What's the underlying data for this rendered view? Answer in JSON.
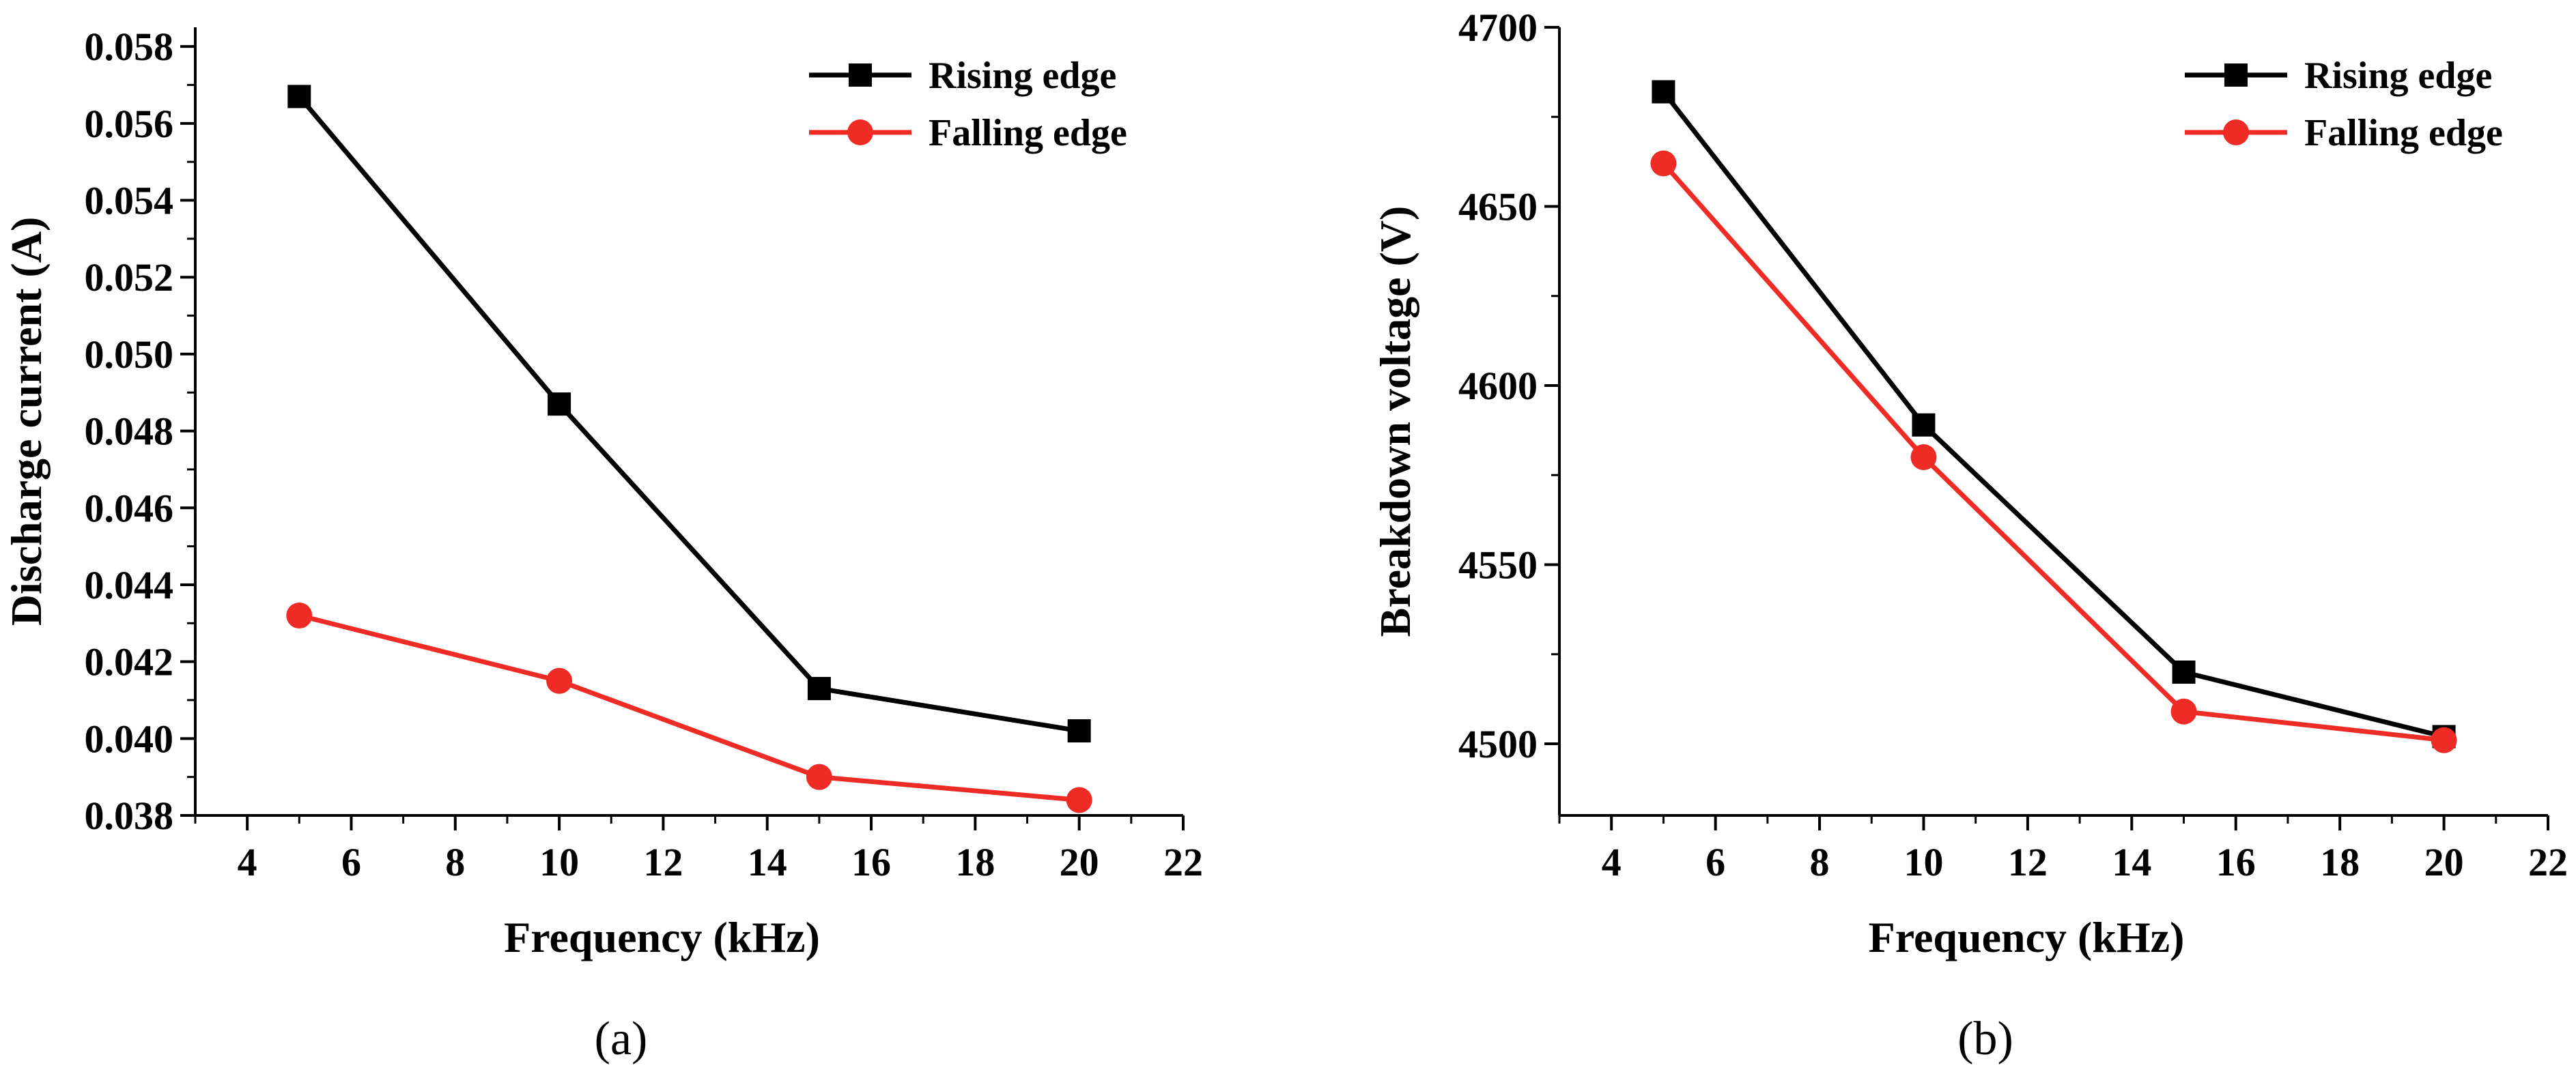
{
  "chart_data": [
    {
      "type": "line",
      "panel_label": "(a)",
      "xlabel": "Frequency (kHz)",
      "ylabel": "Discharge current (A)",
      "xlim": [
        3,
        22
      ],
      "ylim": [
        0.038,
        0.0585
      ],
      "xticks": [
        4,
        6,
        8,
        10,
        12,
        14,
        16,
        18,
        20,
        22
      ],
      "xtick_labels": [
        "4",
        "6",
        "8",
        "10",
        "12",
        "14",
        "16",
        "18",
        "20",
        "22"
      ],
      "yticks": [
        0.038,
        0.04,
        0.042,
        0.044,
        0.046,
        0.048,
        0.05,
        0.052,
        0.054,
        0.056,
        0.058
      ],
      "ytick_labels": [
        "0.038",
        "0.040",
        "0.042",
        "0.044",
        "0.046",
        "0.048",
        "0.050",
        "0.052",
        "0.054",
        "0.056",
        "0.058"
      ],
      "legend_position": "top-right",
      "x": [
        5,
        10,
        15,
        20
      ],
      "series": [
        {
          "name": "Rising edge",
          "color": "#000000",
          "marker": "square",
          "values": [
            0.0567,
            0.0487,
            0.0413,
            0.0402
          ]
        },
        {
          "name": "Falling edge",
          "color": "#ee2b24",
          "marker": "circle",
          "values": [
            0.0432,
            0.0415,
            0.039,
            0.0384
          ]
        }
      ]
    },
    {
      "type": "line",
      "panel_label": "(b)",
      "xlabel": "Frequency (kHz)",
      "ylabel": "Breakdown voltage (V)",
      "xlim": [
        3,
        22
      ],
      "ylim": [
        4480,
        4700
      ],
      "xticks": [
        4,
        6,
        8,
        10,
        12,
        14,
        16,
        18,
        20,
        22
      ],
      "xtick_labels": [
        "4",
        "6",
        "8",
        "10",
        "12",
        "14",
        "16",
        "18",
        "20",
        "22"
      ],
      "yticks": [
        4500,
        4550,
        4600,
        4650,
        4700
      ],
      "ytick_labels": [
        "4500",
        "4550",
        "4600",
        "4650",
        "4700"
      ],
      "legend_position": "top-right",
      "x": [
        5,
        10,
        15,
        20
      ],
      "series": [
        {
          "name": "Rising edge",
          "color": "#000000",
          "marker": "square",
          "values": [
            4682,
            4589,
            4520,
            4502
          ]
        },
        {
          "name": "Falling edge",
          "color": "#ee2b24",
          "marker": "circle",
          "values": [
            4662,
            4580,
            4509,
            4501
          ]
        }
      ]
    }
  ]
}
